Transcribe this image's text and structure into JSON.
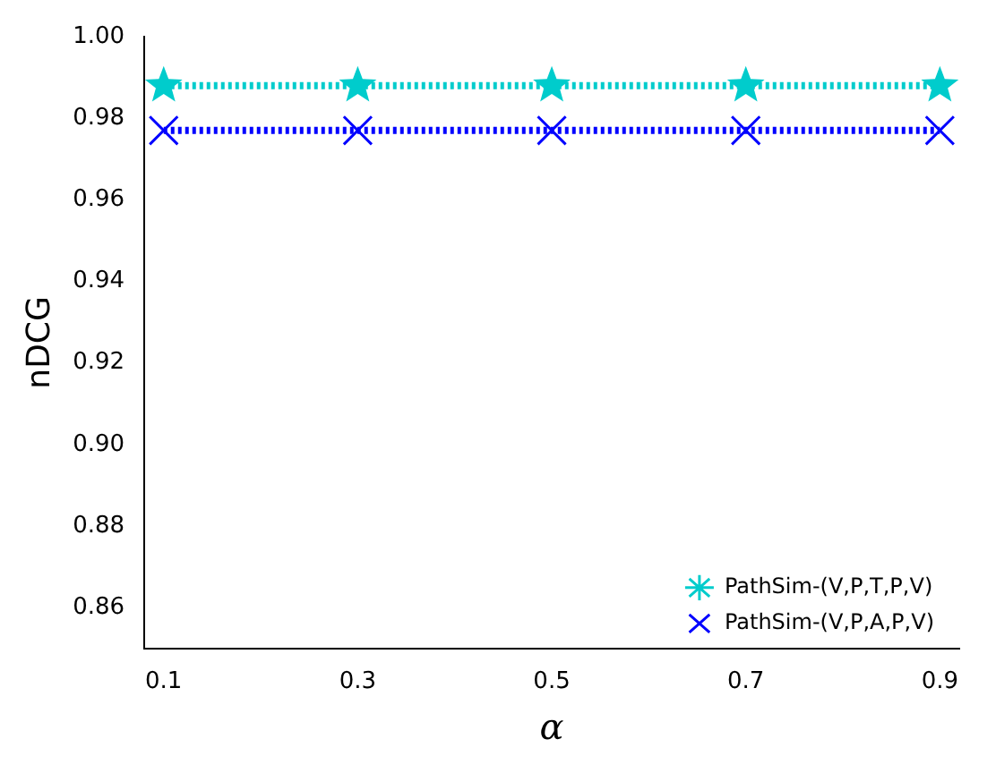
{
  "chart_data": {
    "type": "line",
    "xlabel": "α",
    "ylabel": "nDCG",
    "x": [
      0.1,
      0.3,
      0.5,
      0.7,
      0.9
    ],
    "xlim": [
      0.08,
      0.92
    ],
    "xticks": [
      0.1,
      0.3,
      0.5,
      0.7,
      0.9
    ],
    "ylim": [
      0.85,
      1.0
    ],
    "yticks": [
      {
        "value": 0.86,
        "label": "0.86"
      },
      {
        "value": 0.88,
        "label": "0.88"
      },
      {
        "value": 0.9,
        "label": "0.90"
      },
      {
        "value": 0.92,
        "label": "0.92"
      },
      {
        "value": 0.94,
        "label": "0.94"
      },
      {
        "value": 0.96,
        "label": "0.96"
      },
      {
        "value": 0.98,
        "label": "0.98"
      },
      {
        "value": 1.0,
        "label": "1.00"
      }
    ],
    "series": [
      {
        "name": "PathSim-(V,P,T,P,V)",
        "color": "#00cccc",
        "marker": "star",
        "values": [
          0.988,
          0.988,
          0.988,
          0.988,
          0.988
        ]
      },
      {
        "name": "PathSim-(V,P,A,P,V)",
        "color": "#0000ff",
        "marker": "cross",
        "values": [
          0.977,
          0.977,
          0.977,
          0.977,
          0.977
        ]
      }
    ],
    "line_style": "dotted",
    "grid": false,
    "legend": "right"
  }
}
